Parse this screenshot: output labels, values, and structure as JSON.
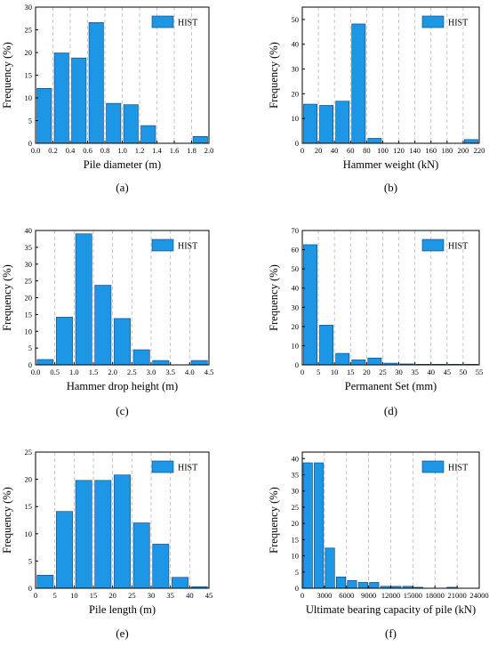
{
  "figure": {
    "bar_color": "#1E96E6",
    "bar_edge_color": "#0A3E6E",
    "grid_color": "#B8B8B8"
  },
  "chart_data": [
    {
      "panel": "(a)",
      "type": "bar",
      "xlabel": "Pile diameter (m)",
      "ylabel": "Frequency (%)",
      "legend": "HIST",
      "legend_position": "top-right",
      "grid": "vertical dashed",
      "xlim": [
        0,
        2.0
      ],
      "ylim": [
        0,
        30
      ],
      "xticks": [
        "0.0",
        "0.2",
        "0.4",
        "0.6",
        "0.8",
        "1.0",
        "1.2",
        "1.4",
        "1.6",
        "1.8",
        "2.0"
      ],
      "yticks": [
        "0",
        "5",
        "10",
        "15",
        "20",
        "25",
        "30"
      ],
      "grid_x": [
        0.2,
        0.4,
        0.6,
        0.8,
        1.0,
        1.2,
        1.4,
        1.6,
        1.8
      ],
      "bin_width": 0.2,
      "bars": [
        {
          "x": 0.1,
          "value": 12.1
        },
        {
          "x": 0.3,
          "value": 19.9
        },
        {
          "x": 0.5,
          "value": 18.8
        },
        {
          "x": 0.7,
          "value": 26.6
        },
        {
          "x": 0.9,
          "value": 8.8
        },
        {
          "x": 1.1,
          "value": 8.5
        },
        {
          "x": 1.3,
          "value": 3.9
        },
        {
          "x": 1.5,
          "value": 0
        },
        {
          "x": 1.7,
          "value": 0
        },
        {
          "x": 1.9,
          "value": 1.5
        }
      ]
    },
    {
      "panel": "(b)",
      "type": "bar",
      "xlabel": "Hammer weight (kN)",
      "ylabel": "Frequency (%)",
      "legend": "HIST",
      "legend_position": "top-right",
      "grid": "vertical dashed",
      "xlim": [
        0,
        220
      ],
      "ylim": [
        0,
        55
      ],
      "xticks": [
        "0",
        "20",
        "40",
        "60",
        "80",
        "100",
        "120",
        "140",
        "160",
        "180",
        "200",
        "220"
      ],
      "yticks": [
        "0",
        "10",
        "20",
        "30",
        "40",
        "50"
      ],
      "grid_x": [
        20,
        40,
        60,
        80,
        100,
        120,
        140,
        160,
        180,
        200
      ],
      "bin_width": 20,
      "bars": [
        {
          "x": 10,
          "value": 15.8
        },
        {
          "x": 30,
          "value": 15.3
        },
        {
          "x": 50,
          "value": 17.0
        },
        {
          "x": 70,
          "value": 48.2
        },
        {
          "x": 90,
          "value": 2.0
        },
        {
          "x": 210,
          "value": 1.5
        }
      ]
    },
    {
      "panel": "(c)",
      "type": "bar",
      "xlabel": "Hammer drop height (m)",
      "ylabel": "Frequency (%)",
      "legend": "HIST",
      "legend_position": "top-right",
      "grid": "vertical dashed",
      "xlim": [
        0,
        4.5
      ],
      "ylim": [
        0,
        40
      ],
      "xticks": [
        "0.0",
        "0.5",
        "1.0",
        "1.5",
        "2.0",
        "2.5",
        "3.0",
        "3.5",
        "4.0",
        "4.5"
      ],
      "yticks": [
        "0",
        "5",
        "10",
        "15",
        "20",
        "25",
        "30",
        "35",
        "40"
      ],
      "grid_x": [
        0.5,
        1.0,
        1.5,
        2.0,
        2.5,
        3.0,
        3.5,
        4.0
      ],
      "bin_width": 0.5,
      "bars": [
        {
          "x": 0.25,
          "value": 1.6
        },
        {
          "x": 0.75,
          "value": 14.2
        },
        {
          "x": 1.25,
          "value": 39.0
        },
        {
          "x": 1.75,
          "value": 23.7
        },
        {
          "x": 2.25,
          "value": 13.8
        },
        {
          "x": 2.75,
          "value": 4.5
        },
        {
          "x": 3.25,
          "value": 1.3
        },
        {
          "x": 3.75,
          "value": 0
        },
        {
          "x": 4.25,
          "value": 1.3
        }
      ]
    },
    {
      "panel": "(d)",
      "type": "bar",
      "xlabel": "Permanent Set (mm)",
      "ylabel": "Frequency (%)",
      "legend": "HIST",
      "legend_position": "top-right",
      "grid": "vertical dashed",
      "xlim": [
        0,
        55
      ],
      "ylim": [
        0,
        70
      ],
      "xticks": [
        "0",
        "5",
        "10",
        "15",
        "20",
        "25",
        "30",
        "35",
        "40",
        "45",
        "50",
        "55"
      ],
      "yticks": [
        "0",
        "10",
        "20",
        "30",
        "40",
        "50",
        "60",
        "70"
      ],
      "grid_x": [
        5,
        10,
        15,
        20,
        25,
        30,
        35,
        40,
        45,
        50
      ],
      "bin_width": 5,
      "bars": [
        {
          "x": 2.5,
          "value": 62.6
        },
        {
          "x": 7.5,
          "value": 20.7
        },
        {
          "x": 12.5,
          "value": 6.0
        },
        {
          "x": 17.5,
          "value": 2.6
        },
        {
          "x": 22.5,
          "value": 3.6
        },
        {
          "x": 27.5,
          "value": 0.9
        },
        {
          "x": 32.5,
          "value": 0.5
        },
        {
          "x": 37.5,
          "value": 0.3
        },
        {
          "x": 42.5,
          "value": 0.3
        },
        {
          "x": 47.5,
          "value": 0.3
        },
        {
          "x": 52.5,
          "value": 0.3
        }
      ]
    },
    {
      "panel": "(e)",
      "type": "bar",
      "xlabel": "Pile length (m)",
      "ylabel": "Frequency (%)",
      "legend": "HIST",
      "legend_position": "top-right",
      "grid": "vertical dashed",
      "xlim": [
        0,
        45
      ],
      "ylim": [
        0,
        25
      ],
      "xticks": [
        "0",
        "5",
        "10",
        "15",
        "20",
        "25",
        "30",
        "35",
        "40",
        "45"
      ],
      "yticks": [
        "0",
        "5",
        "10",
        "15",
        "20",
        "25"
      ],
      "grid_x": [
        5,
        10,
        15,
        20,
        25,
        30,
        35,
        40
      ],
      "bin_width": 5,
      "bars": [
        {
          "x": 2.5,
          "value": 2.4
        },
        {
          "x": 7.5,
          "value": 14.1
        },
        {
          "x": 12.5,
          "value": 19.8
        },
        {
          "x": 17.5,
          "value": 19.8
        },
        {
          "x": 22.5,
          "value": 20.8
        },
        {
          "x": 27.5,
          "value": 12.0
        },
        {
          "x": 32.5,
          "value": 8.1
        },
        {
          "x": 37.5,
          "value": 2.0
        },
        {
          "x": 42.5,
          "value": 0.3
        }
      ]
    },
    {
      "panel": "(f)",
      "type": "bar",
      "xlabel": "Ultimate bearing capacity of pile (kN)",
      "ylabel": "Frequency (%)",
      "legend": "HIST",
      "legend_position": "top-right",
      "grid": "vertical dashed",
      "xlim": [
        0,
        24000
      ],
      "ylim": [
        0,
        42
      ],
      "xticks": [
        "0",
        "3000",
        "6000",
        "9000",
        "12000",
        "15000",
        "18000",
        "21000",
        "24000"
      ],
      "yticks": [
        "0",
        "5",
        "10",
        "15",
        "20",
        "25",
        "30",
        "35",
        "40"
      ],
      "grid_x": [
        3000,
        6000,
        9000,
        12000,
        15000,
        18000,
        21000
      ],
      "bin_width": 1500,
      "bars": [
        {
          "x": 750,
          "value": 38.7
        },
        {
          "x": 2250,
          "value": 38.7
        },
        {
          "x": 3750,
          "value": 12.4
        },
        {
          "x": 5250,
          "value": 3.5
        },
        {
          "x": 6750,
          "value": 2.4
        },
        {
          "x": 8250,
          "value": 1.8
        },
        {
          "x": 9750,
          "value": 1.8
        },
        {
          "x": 11250,
          "value": 0.6
        },
        {
          "x": 12750,
          "value": 0.6
        },
        {
          "x": 14250,
          "value": 0.6
        },
        {
          "x": 15750,
          "value": 0.3
        },
        {
          "x": 20250,
          "value": 0.3
        }
      ]
    }
  ]
}
